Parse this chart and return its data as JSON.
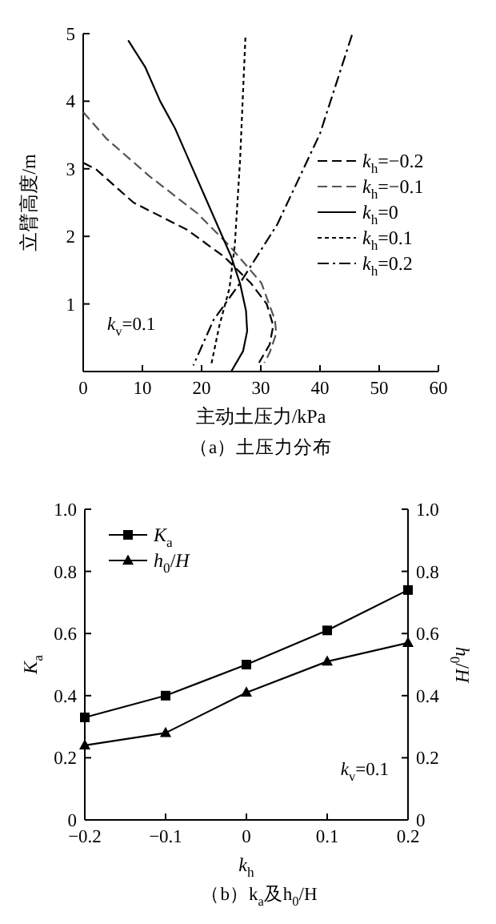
{
  "chart_data": [
    {
      "type": "line",
      "title": "（a）土压力分布",
      "xlabel": "主动土压力/kPa",
      "ylabel": "立臂高度/m",
      "xlim": [
        0,
        60
      ],
      "ylim": [
        0,
        5
      ],
      "xticks": [
        0,
        10,
        20,
        30,
        40,
        50,
        60
      ],
      "yticks": [
        {
          "value": 0,
          "label": null
        },
        1,
        2,
        3,
        4,
        5
      ],
      "legend": "right",
      "annotations": [
        "*k*$_{v}$=0.1"
      ],
      "series": [
        {
          "name": "*k*$_{h}$=−0.2",
          "color": "#000000",
          "line_style": "dashed",
          "x": [
            0,
            2.2,
            8.5,
            17.5,
            23.8,
            28.3,
            31,
            32.1,
            31.5,
            29.7
          ],
          "values": [
            3.09,
            2.99,
            2.5,
            2.1,
            1.7,
            1.31,
            1.0,
            0.68,
            0.4,
            0.13
          ]
        },
        {
          "name": "*k*$_{h}$=−0.1",
          "color": "#555555",
          "line_style": "dashed",
          "x": [
            0,
            4,
            11.2,
            19.3,
            24.7,
            30.1,
            32.4,
            32.6,
            31.5,
            30.6
          ],
          "values": [
            3.84,
            3.44,
            2.89,
            2.34,
            1.86,
            1.31,
            0.76,
            0.56,
            0.28,
            0.13
          ]
        },
        {
          "name": "*k*$_{h}$=0",
          "color": "#000000",
          "line_style": "solid",
          "x": [
            7.6,
            10.5,
            13,
            15.5,
            18,
            20.5,
            23,
            25,
            26.5,
            27.5,
            27.7,
            27,
            25
          ],
          "values": [
            4.9,
            4.5,
            4.0,
            3.6,
            3.1,
            2.6,
            2.1,
            1.7,
            1.3,
            0.9,
            0.6,
            0.3,
            0
          ]
        },
        {
          "name": "*k*$_{h}$=0.1",
          "color": "#000000",
          "line_style": "dotted",
          "x": [
            27.4,
            26.5,
            25.6,
            24.7,
            23,
            21.6
          ],
          "values": [
            4.94,
            3.13,
            1.86,
            1.23,
            0.68,
            0.09
          ]
        },
        {
          "name": "*k*$_{h}$=0.2",
          "color": "#000000",
          "line_style": "dashdot",
          "x": [
            45.4,
            40,
            32.8,
            26.5,
            22,
            18.6
          ],
          "values": [
            4.98,
            3.52,
            2.18,
            1.31,
            0.76,
            0.09
          ]
        }
      ]
    },
    {
      "type": "line",
      "title": "（b）k$_{a}$及h$_{0}$/H",
      "xlabel": "*k*$_{h}$",
      "ylabel": "*K*$_{a}$",
      "y2label": "*h*$_{0}$/*H*",
      "xlim": [
        -0.2,
        0.2
      ],
      "ylim": [
        0,
        1
      ],
      "y2lim": [
        0,
        1
      ],
      "xticks": [
        -0.2,
        -0.1,
        0,
        0.1,
        0.2
      ],
      "yticks": [
        0,
        0.2,
        0.4,
        0.6,
        0.8,
        {
          "value": 1,
          "label": "1.0"
        }
      ],
      "y2ticks": [
        0,
        0.2,
        0.4,
        0.6,
        0.8,
        {
          "value": 1,
          "label": "1.0"
        }
      ],
      "legend": "top left",
      "annotations": [
        "*k*$_{v}$=0.1"
      ],
      "x": [
        -0.2,
        -0.1,
        0,
        0.1,
        0.2
      ],
      "series": [
        {
          "name": "*K*$_{a}$",
          "color": "#000000",
          "marker": "square",
          "values": [
            0.33,
            0.4,
            0.5,
            0.61,
            0.74
          ]
        },
        {
          "name": "*h*$_{0}$/*H*",
          "color": "#000000",
          "marker": "triangle",
          "values": [
            0.24,
            0.28,
            0.41,
            0.51,
            0.57
          ]
        }
      ]
    }
  ]
}
